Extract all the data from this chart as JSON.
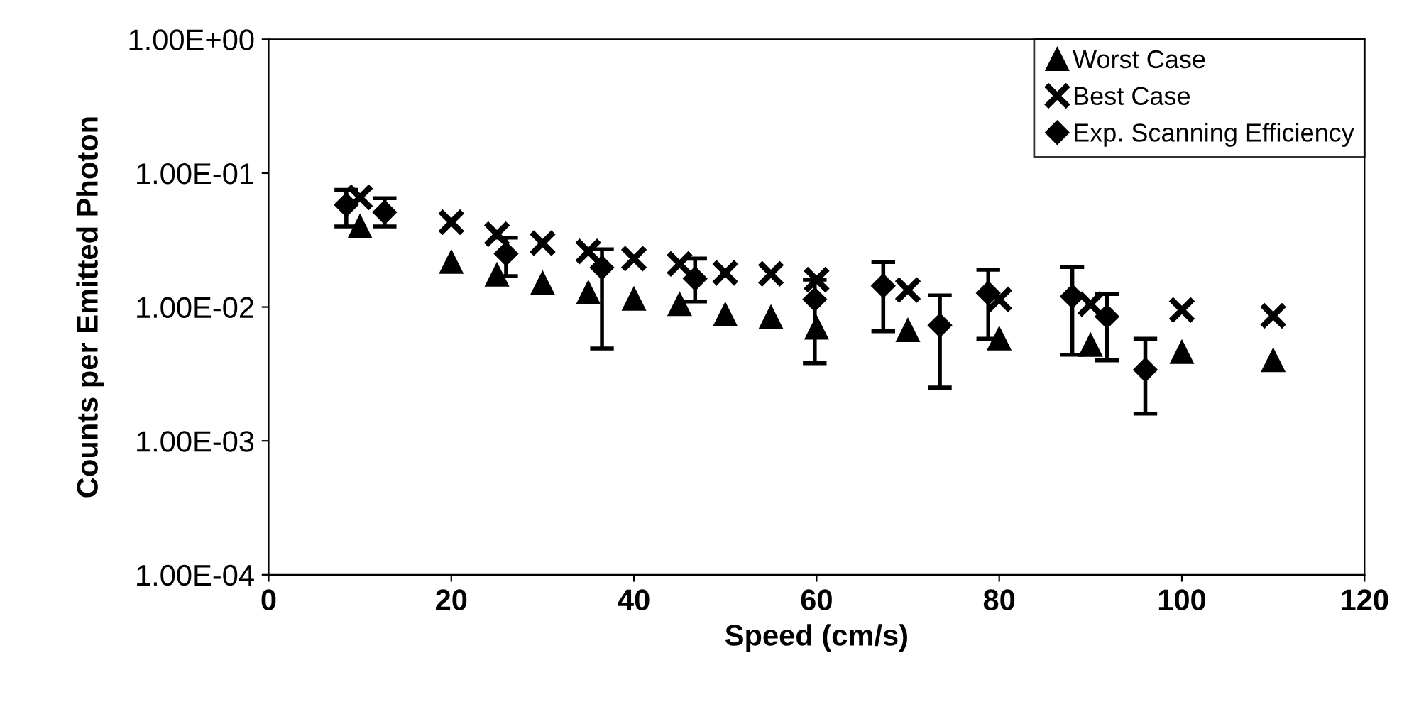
{
  "chart_data": {
    "type": "scatter",
    "xlabel": "Speed (cm/s)",
    "ylabel": "Counts per Emitted Photon",
    "log": "y",
    "xlim": [
      0,
      120
    ],
    "xticks": [
      0,
      20,
      40,
      60,
      80,
      100,
      120
    ],
    "ylim": [
      0.0001,
      1
    ],
    "yticks": [
      {
        "value": 0.0001,
        "label": "1.00E-04"
      },
      {
        "value": 0.001,
        "label": "1.00E-03"
      },
      {
        "value": 0.01,
        "label": "1.00E-02"
      },
      {
        "value": 0.1,
        "label": "1.00E-01"
      },
      {
        "value": 1,
        "label": "1.00E+00"
      }
    ],
    "grid": false,
    "legend": "top right",
    "series": [
      {
        "name": "Worst Case",
        "color": "#000000",
        "marker": "triangle",
        "x": [
          10,
          20,
          25,
          30,
          35,
          40,
          45,
          50,
          55,
          60,
          70,
          80,
          90,
          100,
          110
        ],
        "values": [
          0.04,
          0.0217,
          0.0174,
          0.0151,
          0.0128,
          0.0115,
          0.0105,
          0.0088,
          0.0084,
          0.007,
          0.0067,
          0.0058,
          0.0052,
          0.0046,
          0.004
        ]
      },
      {
        "name": "Best Case",
        "color": "#000000",
        "marker": "cross",
        "x": [
          10,
          20,
          25,
          30,
          35,
          40,
          45,
          50,
          55,
          60,
          70,
          80,
          90,
          100,
          110
        ],
        "values": [
          0.066,
          0.043,
          0.035,
          0.03,
          0.026,
          0.023,
          0.021,
          0.018,
          0.0177,
          0.016,
          0.0134,
          0.0114,
          0.0105,
          0.0095,
          0.0086
        ]
      },
      {
        "name": "Exp. Scanning Efficiency",
        "color": "#000000",
        "marker": "diamond",
        "x": [
          8.5,
          12.7,
          26,
          36.5,
          46.7,
          59.8,
          67.3,
          73.5,
          78.8,
          88,
          91.8,
          96
        ],
        "values": [
          0.058,
          0.051,
          0.025,
          0.0197,
          0.0163,
          0.0114,
          0.0144,
          0.0073,
          0.0127,
          0.012,
          0.0085,
          0.0034
        ],
        "errors": [
          [
            0.04,
            0.075
          ],
          [
            0.04,
            0.065
          ],
          [
            0.017,
            0.033
          ],
          [
            0.0049,
            0.027
          ],
          [
            0.011,
            0.023
          ],
          [
            0.0038,
            0.016
          ],
          [
            0.0066,
            0.0217
          ],
          [
            0.0025,
            0.0122
          ],
          [
            0.0058,
            0.019
          ],
          [
            0.0044,
            0.0199
          ],
          [
            0.004,
            0.0125
          ],
          [
            0.0016,
            0.0058
          ]
        ]
      }
    ]
  }
}
